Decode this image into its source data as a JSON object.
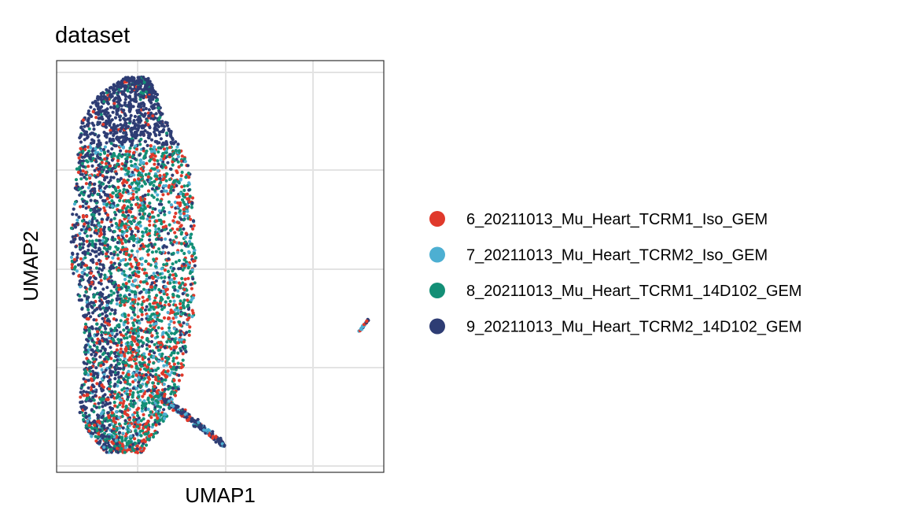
{
  "chart_data": {
    "type": "scatter",
    "title": "dataset",
    "xlabel": "UMAP1",
    "ylabel": "UMAP2",
    "axis_ticks_shown": false,
    "grid": true,
    "legend_position": "right",
    "series": [
      {
        "name": "6_20211013_Mu_Heart_TCRM1_Iso_GEM",
        "color": "#E0392B"
      },
      {
        "name": "7_20211013_Mu_Heart_TCRM2_Iso_GEM",
        "color": "#4DAFD2"
      },
      {
        "name": "8_20211013_Mu_Heart_TCRM1_14D102_GEM",
        "color": "#138F76"
      },
      {
        "name": "9_20211013_Mu_Heart_TCRM2_14D102_GEM",
        "color": "#2E3D74"
      }
    ]
  }
}
